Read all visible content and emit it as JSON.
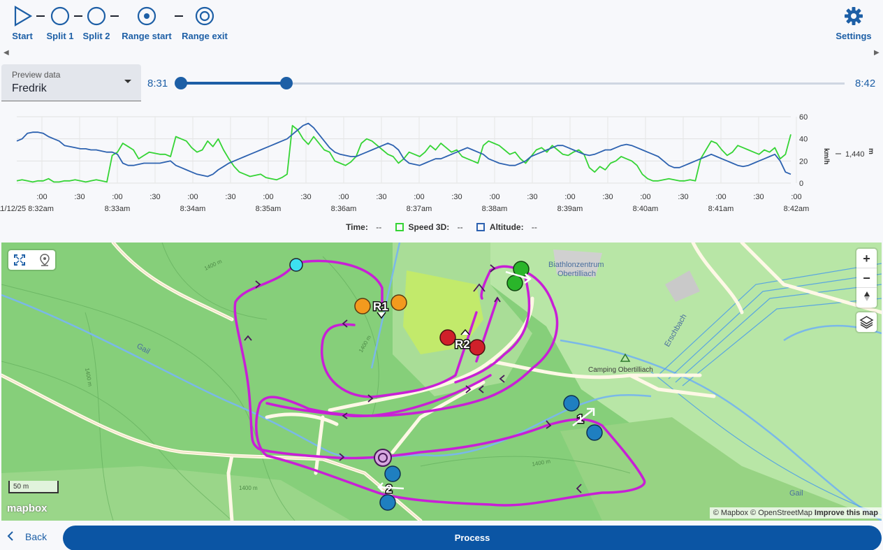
{
  "toolbar": {
    "start": "Start",
    "split1": "Split 1",
    "split2": "Split 2",
    "range_start": "Range start",
    "range_exit": "Range exit",
    "settings": "Settings"
  },
  "preview": {
    "label": "Preview data",
    "value": "Fredrik"
  },
  "slider": {
    "start_time": "8:31",
    "end_time": "8:42",
    "range_fraction": [
      0.0,
      0.16
    ]
  },
  "chart_data": {
    "type": "line",
    "x_tick_top": [
      ":00",
      ":30",
      ":00",
      ":30",
      ":00",
      ":30",
      ":00",
      ":30",
      ":00",
      ":30",
      ":00",
      ":30",
      ":00",
      ":30",
      ":00",
      ":30",
      ":00",
      ":30",
      ":00",
      ":30",
      ":00"
    ],
    "x_tick_bottom": [
      "11/12/25 8:32am",
      "8:33am",
      "8:34am",
      "8:35am",
      "8:36am",
      "8:37am",
      "8:38am",
      "8:39am",
      "8:40am",
      "8:41am",
      "8:42am"
    ],
    "y_ticks": [
      "60",
      "40",
      "20",
      "0"
    ],
    "y_unit": "km/h",
    "right_axis_tick": "1,440",
    "right_axis_unit": "m",
    "ylim": [
      0,
      60
    ],
    "series": [
      {
        "name": "Speed 3D",
        "color": "#35d435",
        "values": [
          2,
          3,
          2,
          1,
          2,
          2,
          4,
          1,
          1,
          2,
          2,
          3,
          2,
          1,
          2,
          3,
          2,
          1,
          25,
          28,
          36,
          33,
          30,
          22,
          25,
          28,
          27,
          26,
          26,
          24,
          42,
          40,
          38,
          32,
          28,
          30,
          38,
          33,
          40,
          30,
          22,
          15,
          10,
          8,
          6,
          7,
          8,
          5,
          4,
          3,
          5,
          8,
          52,
          48,
          40,
          35,
          42,
          36,
          30,
          28,
          20,
          18,
          16,
          19,
          24,
          36,
          40,
          38,
          34,
          30,
          26,
          24,
          18,
          22,
          28,
          26,
          24,
          28,
          34,
          30,
          36,
          32,
          28,
          30,
          24,
          22,
          20,
          18,
          34,
          38,
          36,
          34,
          30,
          26,
          28,
          22,
          18,
          24,
          30,
          32,
          28,
          34,
          30,
          26,
          25,
          28,
          30,
          26,
          14,
          10,
          15,
          12,
          18,
          20,
          24,
          22,
          20,
          16,
          8,
          4,
          2,
          2,
          3,
          4,
          3,
          2,
          2,
          3,
          2,
          22,
          30,
          38,
          36,
          30,
          25,
          28,
          34,
          32,
          30,
          28,
          26,
          30,
          28,
          32,
          22,
          26,
          44
        ]
      },
      {
        "name": "Altitude",
        "color": "#2d62b0",
        "values": [
          38,
          40,
          45,
          46,
          46,
          45,
          42,
          40,
          38,
          34,
          33,
          32,
          31,
          31,
          30,
          30,
          29,
          28,
          28,
          26,
          18,
          16,
          16,
          17,
          18,
          18,
          18,
          18,
          19,
          20,
          16,
          14,
          12,
          10,
          8,
          7,
          6,
          8,
          12,
          15,
          18,
          20,
          22,
          24,
          26,
          28,
          30,
          32,
          34,
          36,
          38,
          40,
          44,
          48,
          52,
          54,
          50,
          44,
          38,
          32,
          28,
          26,
          25,
          24,
          24,
          26,
          28,
          30,
          32,
          34,
          36,
          34,
          30,
          22,
          18,
          17,
          16,
          18,
          20,
          22,
          22,
          24,
          26,
          28,
          30,
          32,
          30,
          28,
          26,
          22,
          20,
          18,
          17,
          16,
          16,
          18,
          20,
          24,
          26,
          28,
          30,
          32,
          34,
          34,
          32,
          30,
          28,
          26,
          25,
          26,
          28,
          30,
          30,
          32,
          34,
          35,
          34,
          32,
          30,
          28,
          26,
          24,
          20,
          16,
          14,
          14,
          16,
          18,
          20,
          22,
          24,
          26,
          24,
          22,
          20,
          18,
          16,
          15,
          16,
          18,
          20,
          22,
          24,
          26,
          20,
          10,
          8
        ]
      }
    ]
  },
  "legend": {
    "time_label": "Time:",
    "time_value": "--",
    "speed_label": "Speed 3D:",
    "speed_value": "--",
    "alt_label": "Altitude:",
    "alt_value": "--"
  },
  "map": {
    "labels": {
      "biathlon1": "Biathlonzentrum",
      "biathlon2": "Obertilliach",
      "camping": "Camping Obertilliach",
      "river1": "Gail",
      "river2": "Gail",
      "stream": "Erschbach",
      "c1": "1400 m",
      "c2": "1400 m",
      "c3": "1400 m",
      "c4": "1400 m",
      "c5": "1400 m"
    },
    "markers": {
      "r1": "R1",
      "r2": "R2",
      "m1": "1",
      "m2": "2"
    },
    "scale": "50 m",
    "logo": "mapbox",
    "attribution_a": "© Mapbox © OpenStreetMap",
    "attribution_b": "Improve this map"
  },
  "footer": {
    "back": "Back",
    "process": "Process"
  },
  "colors": {
    "accent": "#1d5fa6",
    "track": "#c81fd6",
    "button": "#0b55a4"
  }
}
